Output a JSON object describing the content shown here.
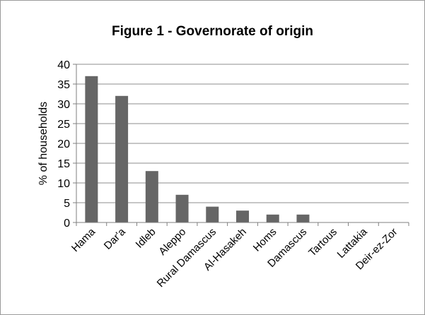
{
  "chart_data": {
    "type": "bar",
    "title": "Figure 1 - Governorate of origin",
    "xlabel": "",
    "ylabel": "% of households",
    "categories": [
      "Hama",
      "Dar'a",
      "Idleb",
      "Aleppo",
      "Rural Damascus",
      "Al-Hasakeh",
      "Homs",
      "Damascus",
      "Tartous",
      "Lattakia",
      "Deir-ez-Zor"
    ],
    "values": [
      37,
      32,
      13,
      7,
      4,
      3,
      2,
      2,
      0,
      0,
      0
    ],
    "ylim": [
      0,
      40
    ],
    "yticks": [
      0,
      5,
      10,
      15,
      20,
      25,
      30,
      35,
      40
    ],
    "grid": true,
    "legend": "none",
    "bar_color": "#666666",
    "grid_color": "#8c8c8c",
    "axis_color": "#7f7f7f"
  }
}
